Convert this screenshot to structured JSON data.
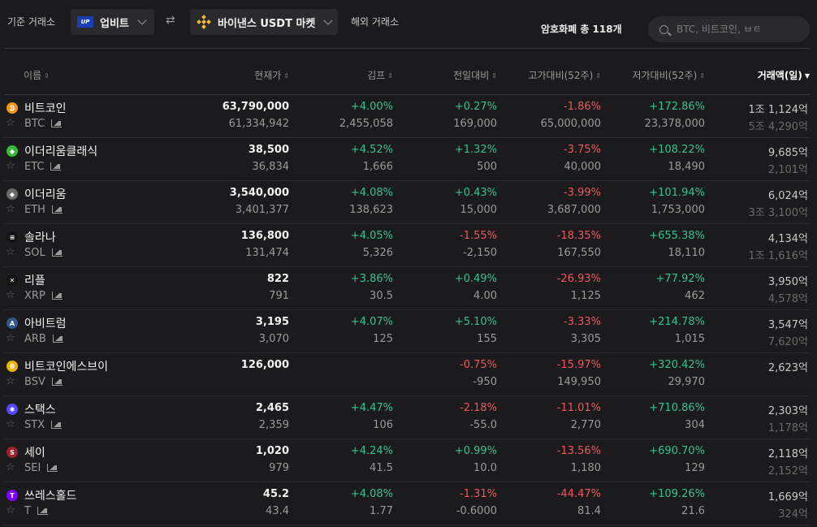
{
  "topbar": {
    "base_label": "기준 거래소",
    "base_exchange": "업비트",
    "base_logo_text": "UP",
    "swap_symbol": "⇄",
    "target_exchange": "바이낸스 USDT 마켓",
    "overseas_label": "해외 거래소",
    "count_label": "암호화폐 총 118개",
    "search_placeholder": "BTC, 비트코인, ㅂㅌ"
  },
  "columns": {
    "name": "이름",
    "price": "현재가",
    "kimp": "김프",
    "change": "전일대비",
    "high": "고가대비(52주)",
    "low": "저가대비(52주)",
    "volume": "거래액(일)"
  },
  "colors": {
    "up": "#34c38f",
    "down": "#f0565c",
    "background": "#1b1b1d"
  },
  "rows": [
    {
      "name": "비트코인",
      "symbol": "BTC",
      "icon": "bitcoin-icon",
      "icon_color": "#f7931a",
      "icon_glyph": "₿",
      "price": "63,790,000",
      "price_sub": "61,334,942",
      "kimp": "+4.00%",
      "kimp_sub": "2,455,058",
      "change": "+0.27%",
      "change_sub": "169,000",
      "change_dir": "up",
      "high": "-1.86%",
      "high_sub": "65,000,000",
      "low": "+172.86%",
      "low_sub": "23,378,000",
      "vol": "1조 1,124억",
      "vol_sub": "5조 4,290억"
    },
    {
      "name": "이더리움클래식",
      "symbol": "ETC",
      "icon": "ethereum-classic-icon",
      "icon_color": "#3ab83a",
      "icon_glyph": "◆",
      "price": "38,500",
      "price_sub": "36,834",
      "kimp": "+4.52%",
      "kimp_sub": "1,666",
      "change": "+1.32%",
      "change_sub": "500",
      "change_dir": "up",
      "high": "-3.75%",
      "high_sub": "40,000",
      "low": "+108.22%",
      "low_sub": "18,490",
      "vol": "9,685억",
      "vol_sub": "2,101억"
    },
    {
      "name": "이더리움",
      "symbol": "ETH",
      "icon": "ethereum-icon",
      "icon_color": "#6b6b6b",
      "icon_glyph": "◆",
      "price": "3,540,000",
      "price_sub": "3,401,377",
      "kimp": "+4.08%",
      "kimp_sub": "138,623",
      "change": "+0.43%",
      "change_sub": "15,000",
      "change_dir": "up",
      "high": "-3.99%",
      "high_sub": "3,687,000",
      "low": "+101.94%",
      "low_sub": "1,753,000",
      "vol": "6,024억",
      "vol_sub": "3조 3,100억"
    },
    {
      "name": "솔라나",
      "symbol": "SOL",
      "icon": "solana-icon",
      "icon_color": "#141414",
      "icon_glyph": "≡",
      "price": "136,800",
      "price_sub": "131,474",
      "kimp": "+4.05%",
      "kimp_sub": "5,326",
      "change": "-1.55%",
      "change_sub": "-2,150",
      "change_dir": "down",
      "high": "-18.35%",
      "high_sub": "167,550",
      "low": "+655.38%",
      "low_sub": "18,110",
      "vol": "4,134억",
      "vol_sub": "1조 1,616억"
    },
    {
      "name": "리플",
      "symbol": "XRP",
      "icon": "ripple-icon",
      "icon_color": "#141414",
      "icon_glyph": "✕",
      "price": "822",
      "price_sub": "791",
      "kimp": "+3.86%",
      "kimp_sub": "30.5",
      "change": "+0.49%",
      "change_sub": "4.00",
      "change_dir": "up",
      "high": "-26.93%",
      "high_sub": "1,125",
      "low": "+77.92%",
      "low_sub": "462",
      "vol": "3,950억",
      "vol_sub": "4,578억"
    },
    {
      "name": "아비트럼",
      "symbol": "ARB",
      "icon": "arbitrum-icon",
      "icon_color": "#2d5a8c",
      "icon_glyph": "A",
      "price": "3,195",
      "price_sub": "3,070",
      "kimp": "+4.07%",
      "kimp_sub": "125",
      "change": "+5.10%",
      "change_sub": "155",
      "change_dir": "up",
      "high": "-3.33%",
      "high_sub": "3,305",
      "low": "+214.78%",
      "low_sub": "1,015",
      "vol": "3,547억",
      "vol_sub": "7,620억"
    },
    {
      "name": "비트코인에스브이",
      "symbol": "BSV",
      "icon": "bitcoin-sv-icon",
      "icon_color": "#eab300",
      "icon_glyph": "B",
      "price": "126,000",
      "price_sub": "",
      "kimp": "",
      "kimp_sub": "",
      "change": "-0.75%",
      "change_sub": "-950",
      "change_dir": "down",
      "high": "-15.97%",
      "high_sub": "149,950",
      "low": "+320.42%",
      "low_sub": "29,970",
      "vol": "2,623억",
      "vol_sub": ""
    },
    {
      "name": "스택스",
      "symbol": "STX",
      "icon": "stacks-icon",
      "icon_color": "#5546ff",
      "icon_glyph": "✱",
      "price": "2,465",
      "price_sub": "2,359",
      "kimp": "+4.47%",
      "kimp_sub": "106",
      "change": "-2.18%",
      "change_sub": "-55.0",
      "change_dir": "down",
      "high": "-11.01%",
      "high_sub": "2,770",
      "low": "+710.86%",
      "low_sub": "304",
      "vol": "2,303억",
      "vol_sub": "1,178억"
    },
    {
      "name": "세이",
      "symbol": "SEI",
      "icon": "sei-icon",
      "icon_color": "#9e1f2e",
      "icon_glyph": "S",
      "price": "1,020",
      "price_sub": "979",
      "kimp": "+4.24%",
      "kimp_sub": "41.5",
      "change": "+0.99%",
      "change_sub": "10.0",
      "change_dir": "up",
      "high": "-13.56%",
      "high_sub": "1,180",
      "low": "+690.70%",
      "low_sub": "129",
      "vol": "2,118억",
      "vol_sub": "2,152억"
    },
    {
      "name": "쓰레스홀드",
      "symbol": "T",
      "icon": "threshold-icon",
      "icon_color": "#7d00ff",
      "icon_glyph": "T",
      "price": "45.2",
      "price_sub": "43.4",
      "kimp": "+4.08%",
      "kimp_sub": "1.77",
      "change": "-1.31%",
      "change_sub": "-0.6000",
      "change_dir": "down",
      "high": "-44.47%",
      "high_sub": "81.4",
      "low": "+109.26%",
      "low_sub": "21.6",
      "vol": "1,669억",
      "vol_sub": "324억"
    }
  ]
}
